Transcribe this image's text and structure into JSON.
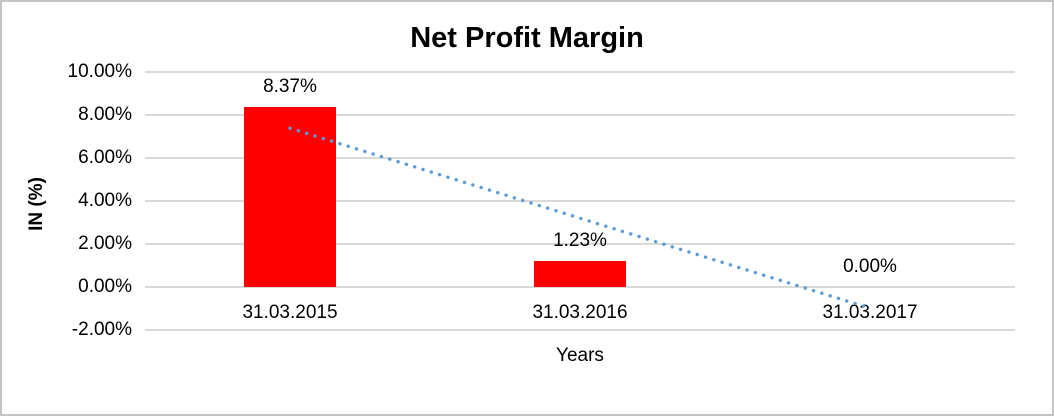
{
  "chart_data": {
    "type": "bar",
    "title": "Net Profit Margin",
    "xlabel": "Years",
    "ylabel": "IN (%)",
    "categories": [
      "31.03.2015",
      "31.03.2016",
      "31.03.2017"
    ],
    "values": [
      8.37,
      1.23,
      0.0
    ],
    "data_labels": [
      "8.37%",
      "1.23%",
      "0.00%"
    ],
    "ytick_labels": [
      "10.00%",
      "8.00%",
      "6.00%",
      "4.00%",
      "2.00%",
      "0.00%",
      "-2.00%"
    ],
    "ytick_values": [
      10,
      8,
      6,
      4,
      2,
      0,
      -2
    ],
    "ylim": [
      -2,
      10
    ],
    "grid": true,
    "legend": false,
    "bar_color": "#FF0000",
    "gridline_color": "#D9D9D9",
    "trendline": {
      "type": "linear",
      "style": "dotted",
      "color": "#5B9BD5"
    }
  }
}
